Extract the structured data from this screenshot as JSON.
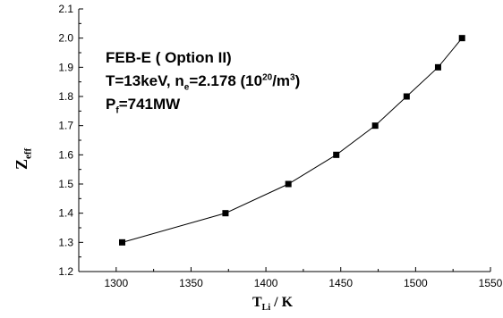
{
  "chart_data": {
    "type": "line",
    "title": "",
    "xlabel": {
      "main": "T",
      "sub": "Li",
      "rest": " / K"
    },
    "ylabel": {
      "main": "Z",
      "sub": "eff"
    },
    "xlim": [
      1275,
      1550
    ],
    "ylim": [
      1.2,
      2.1
    ],
    "xticks": [
      1300,
      1350,
      1400,
      1450,
      1500,
      1550
    ],
    "yticks": [
      "1.2",
      "1.3",
      "1.4",
      "1.5",
      "1.6",
      "1.7",
      "1.8",
      "1.9",
      "2.0",
      "2.1"
    ],
    "grid": false,
    "marker": "square",
    "series": [
      {
        "x": [
          1304,
          1373,
          1415,
          1447,
          1473,
          1494,
          1515,
          1531
        ],
        "y": [
          1.3,
          1.4,
          1.5,
          1.6,
          1.7,
          1.8,
          1.9,
          2.0
        ]
      }
    ],
    "annotations": {
      "line1": {
        "name": "FEB-E",
        "option": " ( Option II)"
      },
      "line2": {
        "a": "T=13keV, n",
        "sub": "e",
        "b": "=2.178 (10",
        "sup1": "20",
        "c": "/m",
        "sup2": "3",
        "d": ")"
      },
      "line3": {
        "a": "P",
        "sub": "f",
        "b": "=741MW"
      }
    }
  }
}
